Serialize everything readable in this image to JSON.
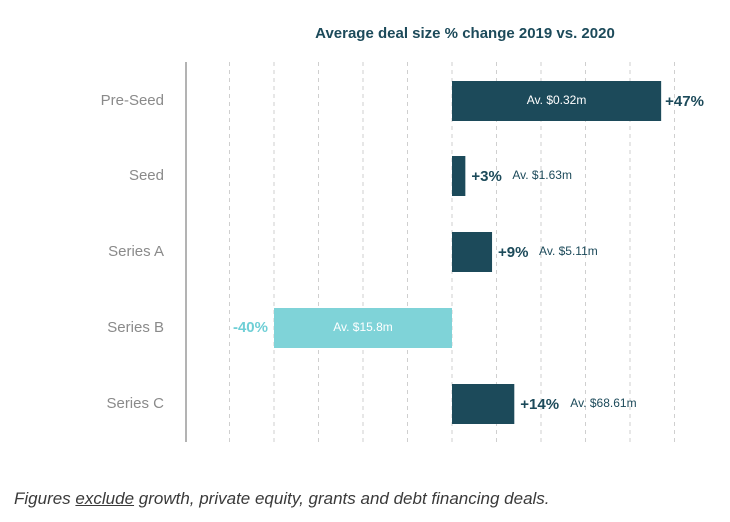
{
  "colors": {
    "positive": "#1c4a5a",
    "negative": "#7fd3d8",
    "negative_label": "#6fcfd6",
    "category_text": "#8a8a8a",
    "title_text": "#1c4a5a",
    "axis": "#9a9a9a",
    "grid": "#cfcfcf"
  },
  "chart_data": {
    "type": "bar",
    "orientation": "horizontal",
    "title": "Average deal size % change 2019 vs. 2020",
    "categories": [
      "Pre-Seed",
      "Seed",
      "Series A",
      "Series B",
      "Series C"
    ],
    "values": [
      47,
      3,
      9,
      -40,
      14
    ],
    "value_labels": [
      "+47%",
      "+3%",
      "+9%",
      "-40%",
      "+14%"
    ],
    "average_labels": [
      "Av. $0.32m",
      "Av. $1.63m",
      "Av. $5.11m",
      "Av. $15.8m",
      "Av. $68.61m"
    ],
    "xlim": [
      -60,
      50
    ],
    "grid": true
  },
  "footnote": {
    "before": "Figures ",
    "underlined": "exclude",
    "after": " growth, private equity, grants and debt financing deals."
  }
}
